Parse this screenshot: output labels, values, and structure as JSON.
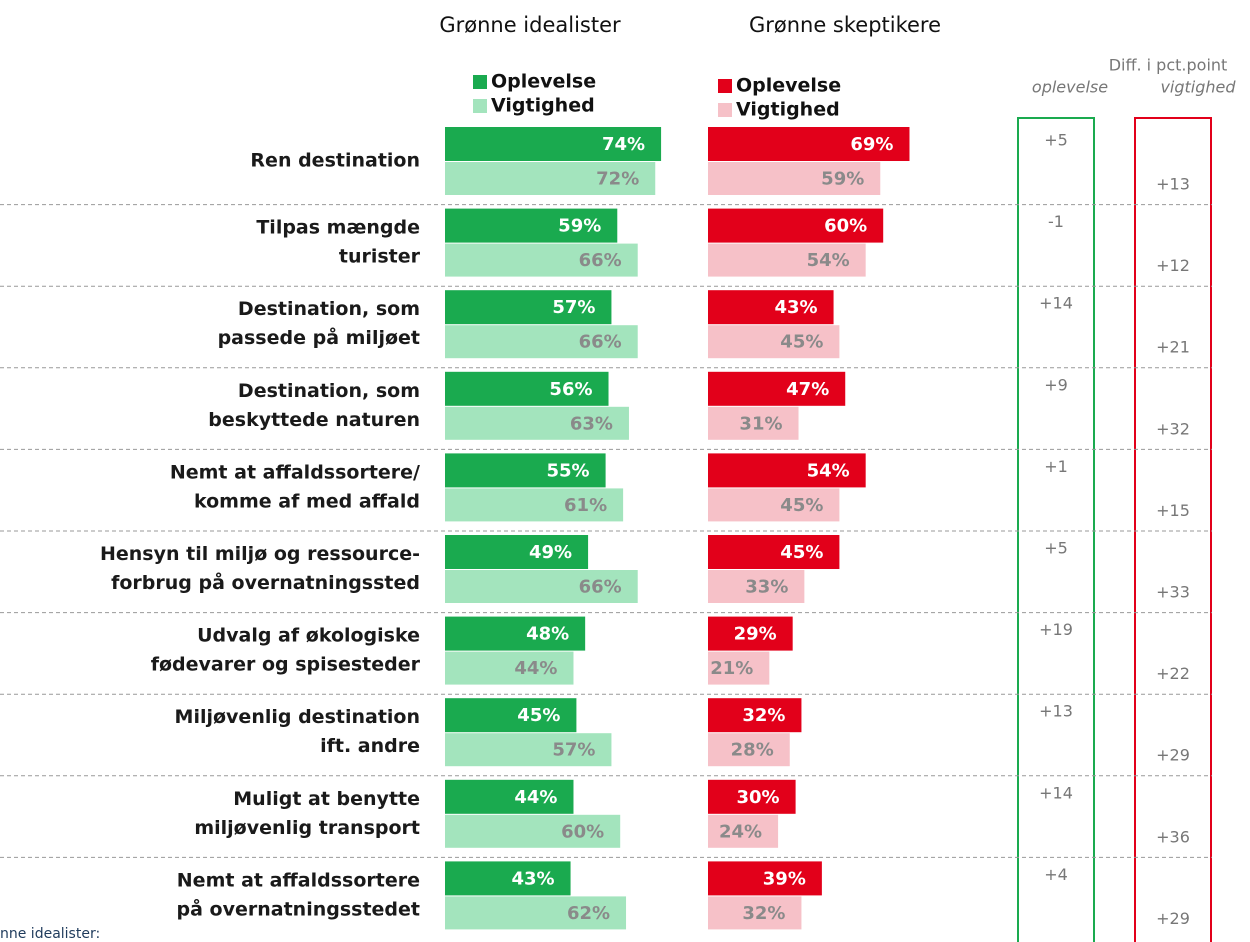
{
  "chart_data": {
    "type": "hbar",
    "categories": [
      [
        "Ren destination"
      ],
      [
        "Tilpas mængde",
        "turister"
      ],
      [
        "Destination, som",
        "passede på miljøet"
      ],
      [
        "Destination, som",
        "beskyttede naturen"
      ],
      [
        "Nemt at affaldssortere/",
        "komme af med affald"
      ],
      [
        "Hensyn til miljø og ressource-",
        "forbrug på overnatningssted"
      ],
      [
        "Udvalg af økologiske",
        "fødevarer og spisesteder"
      ],
      [
        "Miljøvenlig destination",
        "ift. andre"
      ],
      [
        "Muligt at benytte",
        "miljøvenlig transport"
      ],
      [
        "Nemt at affaldssortere",
        "på overnatningsstedet"
      ]
    ],
    "xlim": [
      0,
      100
    ],
    "panels": [
      {
        "title": "Grønne idealister",
        "series": [
          {
            "name": "Oplevelse",
            "color": "#1aaa4f",
            "values": [
              74,
              59,
              57,
              56,
              55,
              49,
              48,
              45,
              44,
              43
            ],
            "value_labels": [
              "74%",
              "59%",
              "57%",
              "56%",
              "55%",
              "49%",
              "48%",
              "45%",
              "44%",
              "43%"
            ]
          },
          {
            "name": "Vigtighed",
            "color": "#a3e4bd",
            "values": [
              72,
              66,
              66,
              63,
              61,
              66,
              44,
              57,
              60,
              62
            ],
            "value_labels": [
              "72%",
              "66%",
              "66%",
              "63%",
              "61%",
              "66%",
              "44%",
              "57%",
              "60%",
              "62%"
            ]
          }
        ]
      },
      {
        "title": "Grønne skeptikere",
        "series": [
          {
            "name": "Oplevelse",
            "color": "#e2001a",
            "values": [
              69,
              60,
              43,
              47,
              54,
              45,
              29,
              32,
              30,
              39
            ],
            "value_labels": [
              "69%",
              "60%",
              "43%",
              "47%",
              "54%",
              "45%",
              "29%",
              "32%",
              "30%",
              "39%"
            ]
          },
          {
            "name": "Vigtighed",
            "color": "#f6c1c8",
            "values": [
              59,
              54,
              45,
              31,
              45,
              33,
              21,
              28,
              24,
              32
            ],
            "value_labels": [
              "59%",
              "54%",
              "45%",
              "31%",
              "45%",
              "33%",
              "21%",
              "28%",
              "24%",
              "32%"
            ]
          }
        ]
      }
    ],
    "diff": {
      "title": "Diff. i pct.point",
      "columns": [
        {
          "name": "oplevelse",
          "color": "#1aaa4f",
          "values": [
            5,
            -1,
            14,
            9,
            1,
            5,
            19,
            13,
            14,
            4
          ],
          "value_labels": [
            "+5",
            "-1",
            "+14",
            "+9",
            "+1",
            "+5",
            "+19",
            "+13",
            "+14",
            "+4"
          ]
        },
        {
          "name": "vigtighed",
          "color": "#e2001a",
          "values": [
            13,
            12,
            21,
            32,
            15,
            33,
            22,
            29,
            36,
            29
          ],
          "value_labels": [
            "+13",
            "+12",
            "+21",
            "+32",
            "+15",
            "+33",
            "+22",
            "+29",
            "+36",
            "+29"
          ]
        }
      ]
    },
    "footnote": "nne idealister:"
  }
}
